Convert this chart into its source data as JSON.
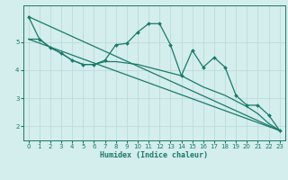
{
  "title": "",
  "xlabel": "Humidex (Indice chaleur)",
  "bg_color": "#d4eded",
  "line_color": "#1a7a6a",
  "grid_color": "#b8d8d8",
  "xlim": [
    -0.5,
    23.5
  ],
  "ylim": [
    1.5,
    6.3
  ],
  "yticks": [
    2,
    3,
    4,
    5
  ],
  "xticks": [
    0,
    1,
    2,
    3,
    4,
    5,
    6,
    7,
    8,
    9,
    10,
    11,
    12,
    13,
    14,
    15,
    16,
    17,
    18,
    19,
    20,
    21,
    22,
    23
  ],
  "series1_x": [
    0,
    1,
    2,
    3,
    4,
    5,
    6,
    7,
    8,
    9,
    10,
    11,
    12,
    13,
    14,
    15,
    16,
    17,
    18,
    19,
    20,
    21,
    22,
    23
  ],
  "series1_y": [
    5.9,
    5.1,
    4.8,
    4.6,
    4.35,
    4.2,
    4.2,
    4.35,
    4.9,
    4.95,
    5.35,
    5.65,
    5.65,
    4.9,
    3.8,
    4.7,
    4.1,
    4.45,
    4.1,
    3.1,
    2.75,
    2.75,
    2.4,
    1.85
  ],
  "series2_x": [
    0,
    23
  ],
  "series2_y": [
    5.9,
    1.85
  ],
  "series3_x": [
    0,
    23
  ],
  "series3_y": [
    5.1,
    1.85
  ],
  "series4_x": [
    0,
    1,
    2,
    3,
    4,
    5,
    6,
    7,
    8,
    9,
    10,
    11,
    12,
    13,
    14,
    15,
    16,
    17,
    18,
    19,
    20,
    21,
    22,
    23
  ],
  "series4_y": [
    5.1,
    5.1,
    4.8,
    4.6,
    4.35,
    4.2,
    4.2,
    4.3,
    4.3,
    4.25,
    4.2,
    4.1,
    4.0,
    3.9,
    3.8,
    3.6,
    3.4,
    3.25,
    3.1,
    2.9,
    2.7,
    2.45,
    2.1,
    1.85
  ]
}
